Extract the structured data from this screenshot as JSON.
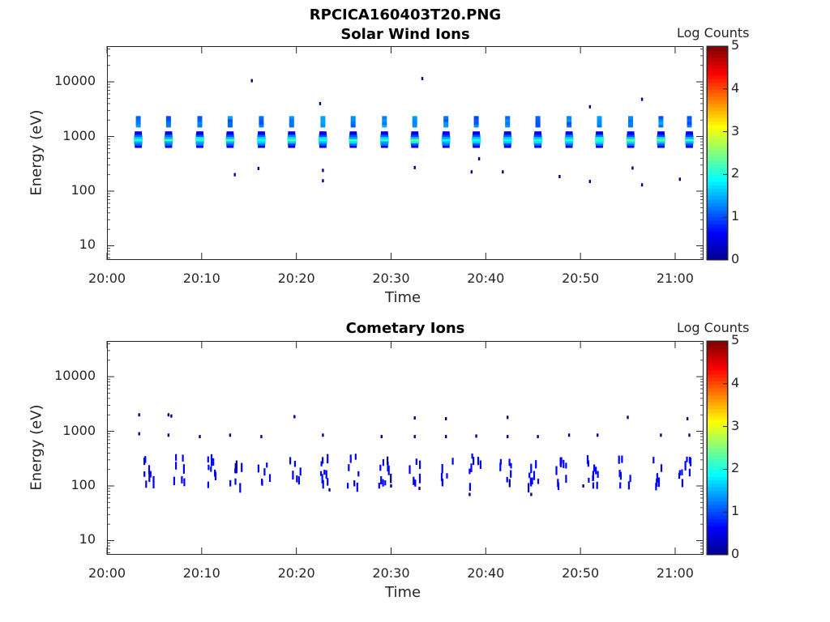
{
  "figure": {
    "title": "RPCICA160403T20.PNG"
  },
  "colors": {
    "cmap": [
      "#00008f",
      "#0000ff",
      "#0080ff",
      "#00ffff",
      "#80ff80",
      "#ffff00",
      "#ff8000",
      "#ff0000",
      "#800000"
    ]
  },
  "chart_data": [
    {
      "type": "heatmap",
      "title": "Solar Wind Ions",
      "xlabel": "Time",
      "ylabel": "Energy (eV)",
      "colorbar_label": "Log Counts",
      "colorbar_ticks": [
        "0",
        "1",
        "2",
        "3",
        "4",
        "5"
      ],
      "clim": [
        0,
        5
      ],
      "x_range_minutes": [
        0,
        63
      ],
      "y_scale": "log",
      "ylim": [
        5.5,
        45000
      ],
      "x_tick_labels": [
        "20:00",
        "20:10",
        "20:20",
        "20:30",
        "20:40",
        "20:50",
        "21:00"
      ],
      "x_tick_minutes": [
        0,
        10,
        20,
        30,
        40,
        50,
        60
      ],
      "y_tick_labels": [
        "10",
        "100",
        "1000",
        "10000"
      ],
      "y_tick_values": [
        10,
        100,
        1000,
        10000
      ],
      "bursts_minutes": [
        3.3,
        6.5,
        9.8,
        13.0,
        16.3,
        19.5,
        22.8,
        26.0,
        29.3,
        32.5,
        35.8,
        39.0,
        42.3,
        45.5,
        48.8,
        52.0,
        55.3,
        58.5,
        61.5
      ],
      "peak_energy_eV": 850,
      "secondary_energy_eV": 1800,
      "peak_log_counts": 2.2,
      "scatter_points": [
        [
          15.3,
          10500
        ],
        [
          33.3,
          11500
        ],
        [
          22.5,
          4000
        ],
        [
          51.0,
          3500
        ],
        [
          56.5,
          4800
        ],
        [
          13.5,
          200
        ],
        [
          16.0,
          260
        ],
        [
          22.8,
          240
        ],
        [
          22.8,
          155
        ],
        [
          32.5,
          270
        ],
        [
          38.5,
          225
        ],
        [
          39.3,
          390
        ],
        [
          41.8,
          225
        ],
        [
          47.8,
          185
        ],
        [
          55.5,
          265
        ],
        [
          56.5,
          130
        ],
        [
          60.5,
          165
        ],
        [
          51.0,
          150
        ]
      ]
    },
    {
      "type": "heatmap",
      "title": "Cometary Ions",
      "xlabel": "Time",
      "ylabel": "Energy (eV)",
      "colorbar_label": "Log Counts",
      "colorbar_ticks": [
        "0",
        "1",
        "2",
        "3",
        "4",
        "5"
      ],
      "clim": [
        0,
        5
      ],
      "x_range_minutes": [
        0,
        63
      ],
      "y_scale": "log",
      "ylim": [
        5.5,
        45000
      ],
      "x_tick_labels": [
        "20:00",
        "20:10",
        "20:20",
        "20:30",
        "20:40",
        "20:50",
        "21:00"
      ],
      "x_tick_minutes": [
        0,
        10,
        20,
        30,
        40,
        50,
        60
      ],
      "y_tick_labels": [
        "10",
        "100",
        "1000",
        "10000"
      ],
      "y_tick_values": [
        10,
        100,
        1000,
        10000
      ],
      "bursts_minutes": [
        4.5,
        7.5,
        10.8,
        13.5,
        16.5,
        19.8,
        22.8,
        26.0,
        29.3,
        32.5,
        35.8,
        38.8,
        42.0,
        44.8,
        47.8,
        51.3,
        54.5,
        58.0,
        61.0
      ],
      "peak_energy_eV": 180,
      "peak_log_counts": 0.6,
      "scatter_points": [
        [
          3.4,
          2000
        ],
        [
          6.5,
          2000
        ],
        [
          6.8,
          1900
        ],
        [
          19.8,
          1850
        ],
        [
          32.5,
          1750
        ],
        [
          35.8,
          1700
        ],
        [
          42.3,
          1800
        ],
        [
          55.0,
          1800
        ],
        [
          61.3,
          1700
        ],
        [
          3.4,
          900
        ],
        [
          6.5,
          850
        ],
        [
          9.8,
          800
        ],
        [
          13.0,
          850
        ],
        [
          16.3,
          800
        ],
        [
          22.8,
          850
        ],
        [
          29.0,
          800
        ],
        [
          32.5,
          800
        ],
        [
          35.8,
          800
        ],
        [
          39.0,
          820
        ],
        [
          42.3,
          800
        ],
        [
          45.5,
          800
        ],
        [
          48.8,
          850
        ],
        [
          51.8,
          850
        ],
        [
          58.5,
          850
        ],
        [
          61.5,
          850
        ],
        [
          23.5,
          85
        ],
        [
          30.0,
          100
        ],
        [
          33.0,
          90
        ],
        [
          38.3,
          70
        ],
        [
          44.8,
          70
        ],
        [
          50.3,
          100
        ]
      ]
    }
  ]
}
